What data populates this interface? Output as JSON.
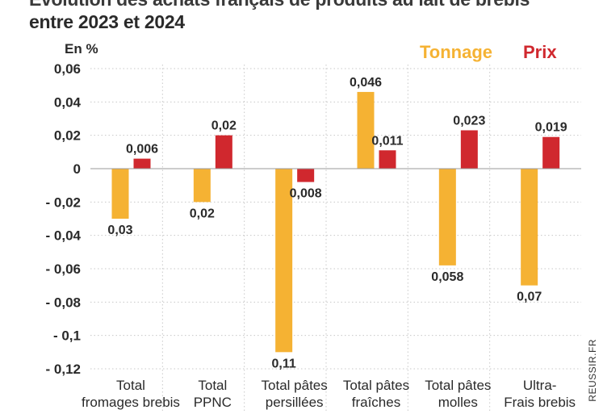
{
  "header": {
    "title_partial": "Évolution des achats français de produits au lait de brebis",
    "title": "entre 2023 et 2024"
  },
  "source": "REUSSIR.FR",
  "chart_data": {
    "type": "bar",
    "title": "entre 2023 et 2024",
    "ylabel": "En %",
    "xlabel": "",
    "ylim": [
      -0.12,
      0.06
    ],
    "yticks": [
      0.06,
      0.04,
      0.02,
      0,
      -0.02,
      -0.04,
      -0.06,
      -0.08,
      -0.1,
      -0.12
    ],
    "ytick_labels": [
      "0,06",
      "0,04",
      "0,02",
      "0",
      "- 0,02",
      "- 0,04",
      "- 0,06",
      "- 0,08",
      "- 0,1",
      "- 0,12"
    ],
    "grid": true,
    "legend_position": "top-right",
    "categories": [
      [
        "Total",
        "fromages brebis"
      ],
      [
        "Total",
        "PPNC"
      ],
      [
        "Total pâtes",
        "persillées"
      ],
      [
        "Total pâtes",
        "fraîches"
      ],
      [
        "Total pâtes",
        "molles"
      ],
      [
        "Ultra-",
        "Frais brebis"
      ]
    ],
    "series": [
      {
        "name": "Tonnage",
        "color": "#F5B233",
        "values": [
          -0.03,
          -0.02,
          -0.11,
          0.046,
          -0.058,
          -0.07
        ],
        "labels": [
          "0,03",
          "0,02",
          "0,11",
          "0,046",
          "0,058",
          "0,07"
        ]
      },
      {
        "name": "Prix",
        "color": "#D0282E",
        "values": [
          0.006,
          0.02,
          -0.008,
          0.011,
          0.023,
          0.019
        ],
        "labels": [
          "0,006",
          "0,02",
          "0,008",
          "0,011",
          "0,023",
          "0,019"
        ]
      }
    ]
  }
}
